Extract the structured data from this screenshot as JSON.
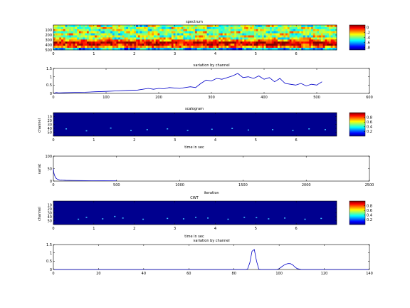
{
  "chart_data": [
    {
      "id": "spectrum",
      "type": "heatmap",
      "title": "spectrum",
      "xlabel": "",
      "ylabel": "",
      "xlim": [
        0,
        7
      ],
      "xticks": [
        "0",
        "1",
        "2",
        "3",
        "4",
        "5",
        "6"
      ],
      "yticks": [
        "100",
        "200",
        "300",
        "400",
        "500"
      ],
      "ylim": [
        0,
        500
      ],
      "colorbar_ticks": [
        "0",
        "-2",
        "-4",
        "-6",
        "-8"
      ],
      "colorbar_lim": [
        -9,
        1
      ],
      "rows": [
        [
          -3,
          -5,
          -4,
          -2,
          -5,
          -3,
          -4,
          -6,
          -2,
          -4,
          -5,
          -3,
          -4,
          -2,
          -5,
          -4,
          -3,
          -5,
          -2,
          -4,
          -3,
          -5,
          -4,
          -2
        ],
        [
          -4,
          -3,
          -5,
          -4,
          -2,
          -4,
          -5,
          -3,
          -4,
          -5,
          -2,
          -4,
          -3,
          -5,
          -4,
          -3,
          -2,
          -4,
          -5,
          -3,
          -4,
          -2,
          -5,
          -4
        ],
        [
          -2,
          -4,
          -3,
          -5,
          -4,
          -2,
          -3,
          -4,
          -5,
          -3,
          -4,
          -2,
          -5,
          -3,
          -4,
          -5,
          -3,
          -2,
          -4,
          -3,
          -5,
          -4,
          -3,
          -5
        ],
        [
          -5,
          -4,
          -2,
          -3,
          -5,
          -4,
          -2,
          -5,
          -3,
          -4,
          -3,
          -5,
          -2,
          -4,
          -5,
          -2,
          -4,
          -3,
          -5,
          -4,
          -2,
          -3,
          -4,
          -3
        ],
        [
          -3,
          -2,
          -4,
          -5,
          -3,
          -5,
          -4,
          -3,
          -2,
          -4,
          -5,
          -3,
          -4,
          -5,
          -2,
          -4,
          -5,
          -4,
          -3,
          -2,
          -5,
          -4,
          -3,
          -4
        ],
        [
          -4,
          -5,
          -3,
          -2,
          -4,
          -3,
          -5,
          -2,
          -4,
          -5,
          -3,
          -4,
          -2,
          -3,
          -5,
          -3,
          -2,
          -5,
          -4,
          -3,
          -4,
          -5,
          -2,
          -5
        ],
        [
          -2,
          -3,
          -5,
          -4,
          -2,
          -5,
          -3,
          -4,
          -3,
          -2,
          -4,
          -5,
          -3,
          -4,
          -2,
          -5,
          -4,
          -3,
          -2,
          -5,
          -3,
          -2,
          -4,
          -3
        ],
        [
          -1,
          -2,
          -1,
          -2,
          -1,
          -1,
          -2,
          -1,
          -1,
          -2,
          -1,
          -2,
          -1,
          -1,
          -2,
          -1,
          -2,
          -1,
          -1,
          -2,
          -1,
          -1,
          -2,
          -1
        ],
        [
          0,
          1,
          0,
          0,
          1,
          0,
          1,
          0,
          0,
          1,
          0,
          0,
          1,
          0,
          1,
          0,
          0,
          1,
          0,
          1,
          0,
          0,
          1,
          0
        ],
        [
          0,
          -1,
          0,
          1,
          0,
          -1,
          0,
          0,
          1,
          0,
          -1,
          0,
          0,
          1,
          0,
          -1,
          0,
          0,
          1,
          0,
          0,
          -1,
          0,
          1
        ],
        [
          -2,
          -1,
          -2,
          -1,
          -2,
          -2,
          -1,
          -2,
          -1,
          -2,
          -1,
          -2,
          -2,
          -1,
          -2,
          -1,
          -2,
          -2,
          -1,
          -2,
          -1,
          -2,
          -1,
          -2
        ],
        [
          -6,
          -5,
          -7,
          -6,
          -5,
          -6,
          -7,
          -5,
          -6,
          -6,
          -5,
          -7,
          -6,
          -5,
          -6,
          -7,
          -6,
          -5,
          -6,
          -7,
          -5,
          -6,
          -6,
          -5
        ]
      ]
    },
    {
      "id": "variation1",
      "type": "line",
      "title": "variation by channel",
      "xlabel": "",
      "ylabel": "",
      "xlim": [
        0,
        600
      ],
      "ylim": [
        0,
        1.5
      ],
      "xticks": [
        "0",
        "100",
        "200",
        "300",
        "400",
        "500",
        "600"
      ],
      "yticks": [
        "0",
        "0.5",
        "1",
        "1.5"
      ],
      "series": [
        {
          "x": [
            1,
            5,
            10,
            20,
            40,
            60,
            80,
            100,
            120,
            140,
            160,
            180,
            190,
            200,
            210,
            220,
            240,
            260,
            270,
            280,
            290,
            300,
            310,
            320,
            330,
            340,
            350,
            360,
            370,
            380,
            390,
            400,
            410,
            420,
            430,
            440,
            450,
            460,
            470,
            480,
            490,
            500,
            510
          ],
          "y": [
            0.0,
            0.05,
            0.03,
            0.04,
            0.06,
            0.07,
            0.1,
            0.12,
            0.15,
            0.18,
            0.2,
            0.3,
            0.25,
            0.3,
            0.28,
            0.35,
            0.3,
            0.4,
            0.35,
            0.6,
            0.8,
            0.75,
            0.9,
            0.85,
            0.95,
            1.05,
            1.2,
            0.95,
            1.0,
            0.9,
            1.05,
            0.85,
            0.95,
            0.7,
            0.9,
            0.6,
            0.55,
            0.5,
            0.6,
            0.45,
            0.55,
            0.5,
            0.7
          ]
        }
      ]
    },
    {
      "id": "scalogram",
      "type": "heatmap",
      "title": "scalogram",
      "xlabel": "time in sec",
      "ylabel": "channel",
      "xlim": [
        0,
        7
      ],
      "ylim": [
        0,
        60
      ],
      "xticks": [
        "0",
        "1",
        "2",
        "3",
        "4",
        "5",
        "6"
      ],
      "yticks": [
        "10",
        "20",
        "30",
        "40",
        "50"
      ],
      "colorbar_ticks": [
        "0.8",
        "0.6",
        "0.4",
        "0.2"
      ],
      "colorbar_lim": [
        0,
        1
      ],
      "dots": [
        [
          0.3,
          40
        ],
        [
          0.8,
          45
        ],
        [
          1.4,
          38
        ],
        [
          1.9,
          44
        ],
        [
          2.3,
          42
        ],
        [
          2.8,
          40
        ],
        [
          3.3,
          44
        ],
        [
          3.9,
          41
        ],
        [
          4.4,
          39
        ],
        [
          4.8,
          43
        ],
        [
          5.4,
          42
        ],
        [
          5.9,
          44
        ],
        [
          6.3,
          40
        ],
        [
          6.7,
          42
        ]
      ]
    },
    {
      "id": "variation_iter",
      "type": "line",
      "title": "",
      "xlabel": "iteration",
      "ylabel": "variat",
      "xlim": [
        0,
        2500
      ],
      "ylim": [
        0,
        100
      ],
      "xticks": [
        "0",
        "500",
        "1000",
        "1500",
        "2000",
        "2500"
      ],
      "yticks": [
        "0",
        "50",
        "100"
      ],
      "series": [
        {
          "x": [
            0,
            2,
            5,
            8,
            12,
            15,
            20,
            25,
            30,
            40,
            50,
            70,
            100,
            150,
            200,
            300,
            400,
            500
          ],
          "y": [
            50,
            40,
            30,
            25,
            20,
            15,
            12,
            10,
            8,
            6,
            5,
            4,
            3,
            2.5,
            2,
            1.5,
            1.2,
            1
          ]
        }
      ]
    },
    {
      "id": "cwt",
      "type": "heatmap",
      "title": "CWT",
      "xlabel": "time in sec",
      "ylabel": "channel",
      "xlim": [
        0,
        7
      ],
      "ylim": [
        0,
        60
      ],
      "xticks": [
        "0",
        "1",
        "2",
        "3",
        "4",
        "5",
        "6"
      ],
      "yticks": [
        "10",
        "20",
        "30",
        "40",
        "50"
      ],
      "colorbar_ticks": [
        "0.8",
        "0.6",
        "0.4",
        "0.2"
      ],
      "colorbar_lim": [
        0,
        1
      ],
      "dots": [
        [
          0.6,
          45
        ],
        [
          0.8,
          40
        ],
        [
          1.2,
          44
        ],
        [
          1.7,
          42
        ],
        [
          2.2,
          45
        ],
        [
          2.8,
          43
        ],
        [
          3.2,
          44
        ],
        [
          3.8,
          42
        ],
        [
          4.3,
          45
        ],
        [
          4.7,
          40
        ],
        [
          5.3,
          44
        ],
        [
          5.7,
          42
        ],
        [
          6.2,
          45
        ],
        [
          6.6,
          43
        ],
        [
          1.5,
          38
        ],
        [
          3.5,
          40
        ],
        [
          5.0,
          41
        ]
      ]
    },
    {
      "id": "variation2",
      "type": "line",
      "title": "variation by channel",
      "xlabel": "",
      "ylabel": "",
      "xlim": [
        0,
        140
      ],
      "ylim": [
        0,
        1.5
      ],
      "xticks": [
        "0",
        "20",
        "40",
        "60",
        "80",
        "100",
        "120",
        "140"
      ],
      "yticks": [
        "0",
        "0.5",
        "1",
        "1.5"
      ],
      "series": [
        {
          "x": [
            0,
            85,
            86,
            87,
            88,
            89,
            90,
            91,
            92,
            99,
            100,
            101,
            102,
            103,
            104,
            105,
            106,
            107,
            108,
            110,
            140
          ],
          "y": [
            0,
            0,
            0.02,
            0.4,
            1.1,
            1.2,
            0.5,
            0.02,
            0,
            0,
            0.05,
            0.15,
            0.25,
            0.32,
            0.36,
            0.35,
            0.28,
            0.15,
            0.05,
            0,
            0
          ]
        }
      ]
    }
  ],
  "colormap": [
    "#00008f",
    "#0000ff",
    "#0080ff",
    "#00ffff",
    "#80ff80",
    "#ffff00",
    "#ff8000",
    "#ff0000",
    "#800000"
  ]
}
